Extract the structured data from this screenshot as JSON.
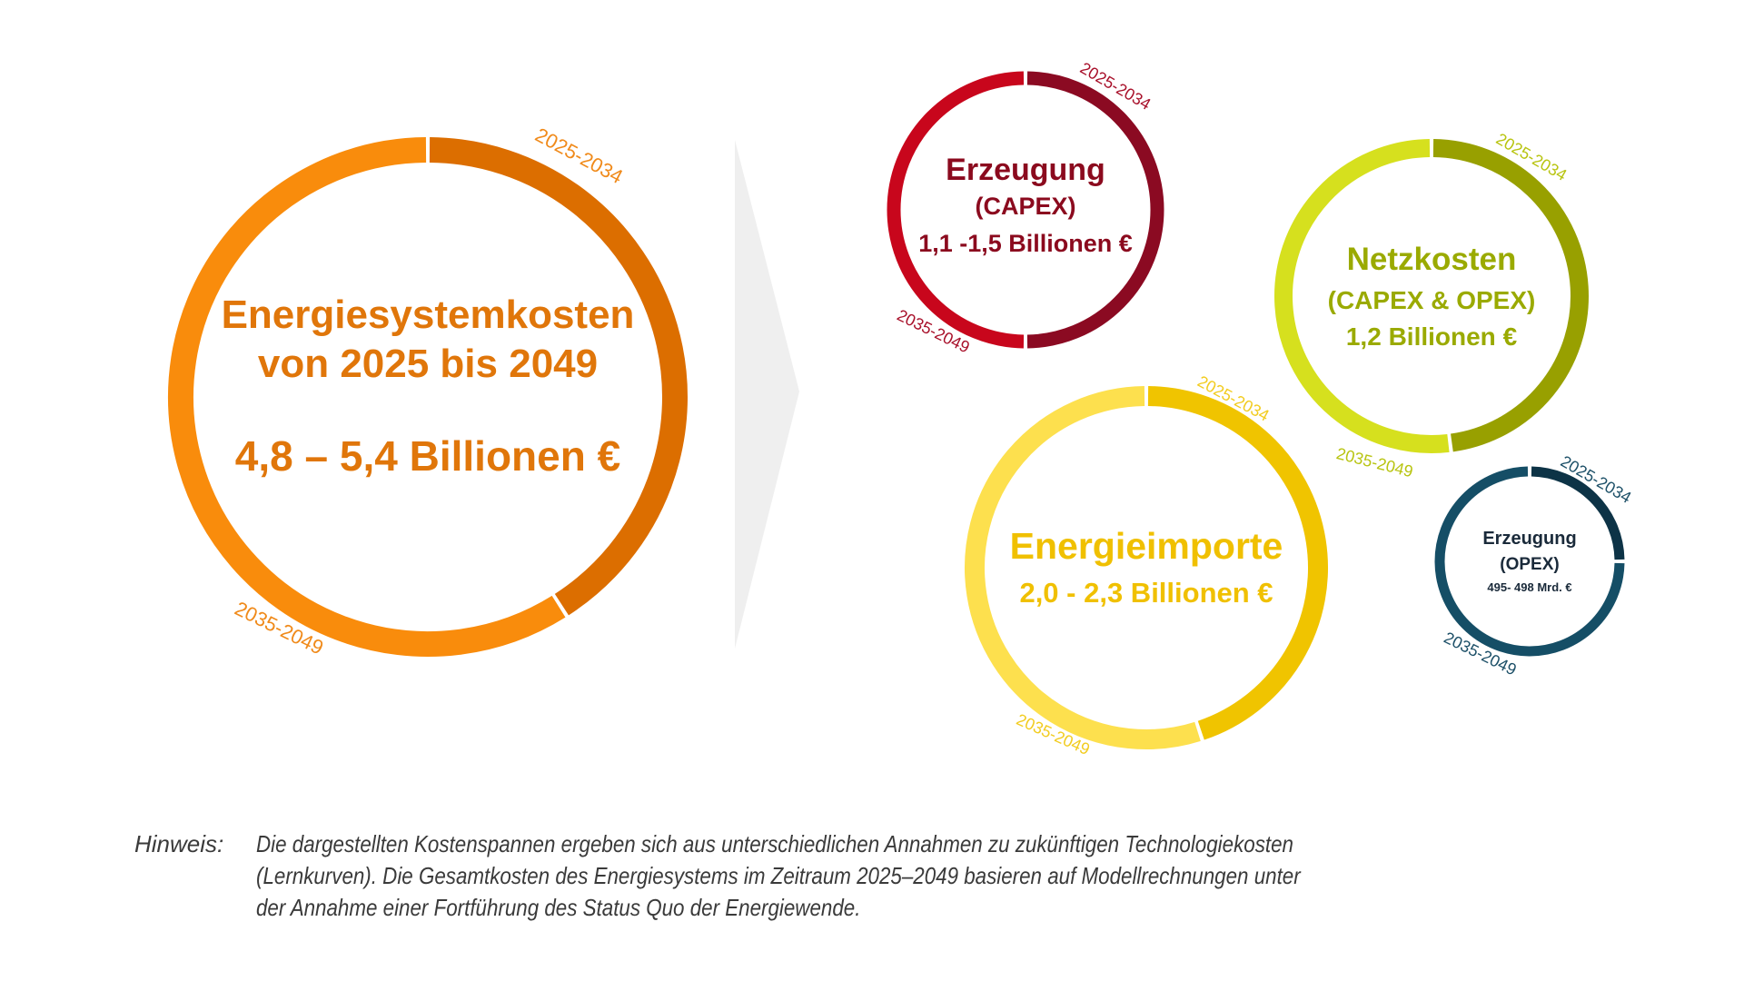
{
  "arrow_color": "#efefef",
  "circles": [
    {
      "id": "energiesystemkosten",
      "lines": [
        "Energiesystemkosten",
        "von 2025 bis 2049",
        "4,8 – 5,4 Billionen €"
      ],
      "label_first": "2025-2034",
      "label_second": "2035-2049",
      "share_first_period": 0.41,
      "color_first": "#dc6e00",
      "color_second": "#f98c0c",
      "text_color": "#e0760a",
      "label_color": "#f08a1a"
    },
    {
      "id": "erzeugung-capex",
      "lines": [
        "Erzeugung",
        "(CAPEX)",
        "1,1 -1,5 Billionen €"
      ],
      "label_first": "2025-2034",
      "label_second": "2035-2049",
      "share_first_period": 0.5,
      "color_first": "#8b0a22",
      "color_second": "#c8061c",
      "text_color": "#8b0a1e",
      "label_color": "#a8102a"
    },
    {
      "id": "netzkosten",
      "lines": [
        "Netzkosten",
        "(CAPEX & OPEX)",
        "1,2 Billionen €"
      ],
      "label_first": "2025-2034",
      "label_second": "2035-2049",
      "share_first_period": 0.48,
      "color_first": "#98a000",
      "color_second": "#d6e01e",
      "text_color": "#9aaa00",
      "label_color": "#b8c410"
    },
    {
      "id": "energieimporte",
      "lines": [
        "Energieimporte",
        "2,0 - 2,3 Billionen €"
      ],
      "label_first": "2025-2034",
      "label_second": "2035-2049",
      "share_first_period": 0.45,
      "color_first": "#f0c400",
      "color_second": "#fde04e",
      "text_color": "#f0c000",
      "label_color": "#f2cc20"
    },
    {
      "id": "erzeugung-opex",
      "lines": [
        "Erzeugung",
        "(OPEX)",
        "495- 498 Mrd. €"
      ],
      "label_first": "2025-2034",
      "label_second": "2035-2049",
      "share_first_period": 0.25,
      "color_first": "#0d3346",
      "color_second": "#154e66",
      "text_color": "#1a2a3a",
      "label_color": "#1d5068"
    }
  ],
  "note": {
    "label": "Hinweis:",
    "lines": [
      "Die dargestellten Kostenspannen ergeben sich aus unterschiedlichen Annahmen zu zukünftigen Technologiekosten",
      "(Lernkurven). Die Gesamtkosten des Energiesystems im Zeitraum 2025–2049 basieren auf Modellrechnungen unter",
      "der Annahme einer Fortführung des Status Quo der Energiewende."
    ]
  }
}
